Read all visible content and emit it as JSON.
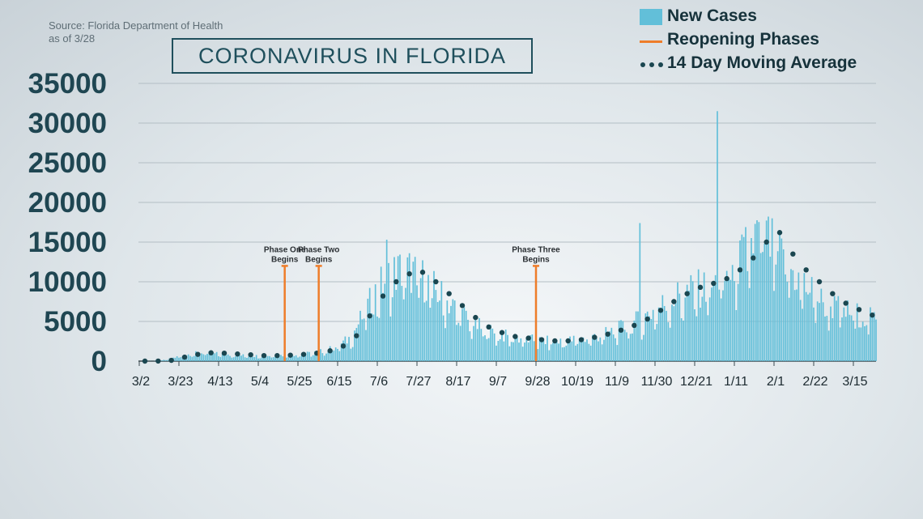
{
  "source": {
    "line1": "Source: Florida Department of Health",
    "line2": "as of 3/28"
  },
  "title": "CORONAVIRUS IN FLORIDA",
  "legend": {
    "new_cases": "New Cases",
    "reopening": "Reopening Phases",
    "moving_avg": "14 Day Moving Average"
  },
  "colors": {
    "bars": "#62bfd9",
    "phase_lines": "#ee7d2a",
    "moving_avg": "#1a4650",
    "title": "#1f4f5c"
  },
  "chart_data": {
    "type": "bar",
    "title": "CORONAVIRUS IN FLORIDA",
    "xlabel": "",
    "ylabel": "",
    "ylim": [
      0,
      35000
    ],
    "yticks": [
      0,
      5000,
      10000,
      15000,
      20000,
      25000,
      30000,
      35000
    ],
    "grid": true,
    "legend_position": "top-right",
    "x_ticks": [
      "3/2",
      "3/23",
      "4/13",
      "5/4",
      "5/25",
      "6/15",
      "7/6",
      "7/27",
      "8/17",
      "9/7",
      "9/28",
      "10/19",
      "11/9",
      "11/30",
      "12/21",
      "1/11",
      "2/1",
      "2/22",
      "3/15"
    ],
    "phases": [
      {
        "label": "Phase One Begins",
        "date_index": 77,
        "height": 12000
      },
      {
        "label": "Phase Two Begins",
        "date_index": 95,
        "height": 12000
      },
      {
        "label": "Phase Three Begins",
        "date_index": 210,
        "height": 12000
      }
    ],
    "series": [
      {
        "name": "New Cases",
        "kind": "bar",
        "start_date": "3/2",
        "date_step_days": 7,
        "weekly_avg": [
          0,
          20,
          150,
          600,
          950,
          1050,
          900,
          800,
          700,
          650,
          700,
          750,
          850,
          1000,
          1300,
          1800,
          3000,
          6000,
          9000,
          11000,
          11500,
          11000,
          9500,
          8000,
          6500,
          5000,
          4000,
          3500,
          3000,
          2800,
          2600,
          2500,
          2500,
          2700,
          2900,
          3300,
          3800,
          4500,
          5300,
          6500,
          7500,
          8500,
          9000,
          9300,
          10000,
          11500,
          14000,
          16500,
          14000,
          12000,
          10000,
          8500,
          7000,
          6500,
          6000,
          5500,
          5000,
          4800,
          4700
        ],
        "notable_peaks": [
          {
            "date": "7/11",
            "value": 15300
          },
          {
            "date": "11/22",
            "value": 17400
          },
          {
            "date": "1/2",
            "value": 31500
          }
        ]
      },
      {
        "name": "14 Day Moving Average",
        "kind": "dots",
        "start_date": "3/2",
        "date_step_days": 7,
        "values": [
          0,
          10,
          100,
          500,
          850,
          1050,
          1000,
          900,
          800,
          700,
          700,
          750,
          850,
          1000,
          1300,
          1900,
          3200,
          5700,
          8200,
          10000,
          11000,
          11200,
          10000,
          8500,
          7000,
          5500,
          4300,
          3600,
          3100,
          2900,
          2700,
          2550,
          2550,
          2700,
          3000,
          3400,
          3900,
          4500,
          5300,
          6400,
          7500,
          8500,
          9300,
          9800,
          10400,
          11500,
          13000,
          15000,
          16200,
          13500,
          11500,
          10000,
          8500,
          7300,
          6500,
          5800,
          5300,
          5000,
          4700
        ]
      }
    ]
  }
}
